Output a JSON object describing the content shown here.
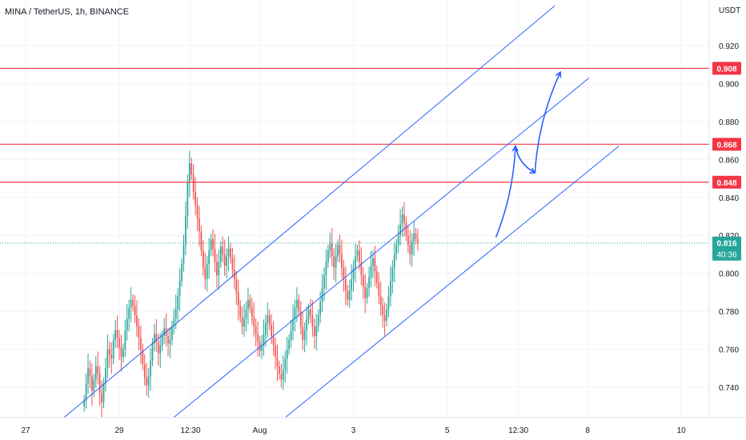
{
  "header": {
    "title": "MINA / TetherUS, 1h, BINANCE",
    "unit": "USDT"
  },
  "colors": {
    "up": "#26a69a",
    "down": "#ef5350",
    "hline": "#f23645",
    "channel": "#2962ff",
    "arrow": "#2962ff",
    "grid": "#f0f3fa",
    "text": "#131722"
  },
  "chart_data": {
    "type": "candlestick",
    "title": "MINA / TetherUS, 1h, BINANCE",
    "y_unit": "USDT",
    "ylim": [
      0.724,
      0.944
    ],
    "y_ticks": [
      0.74,
      0.76,
      0.78,
      0.8,
      0.82,
      0.84,
      0.86,
      0.88,
      0.9,
      0.92
    ],
    "x_ticks": [
      {
        "label": "27",
        "t": 0.0
      },
      {
        "label": "29",
        "t": 48.0
      },
      {
        "label": "12:30",
        "t": 84.5
      },
      {
        "label": "Aug",
        "t": 120.0
      },
      {
        "label": "3",
        "t": 168.0
      },
      {
        "label": "5",
        "t": 216.0
      },
      {
        "label": "12:30",
        "t": 252.5
      },
      {
        "label": "8",
        "t": 288.0
      },
      {
        "label": "10",
        "t": 336.0
      }
    ],
    "price_levels": [
      {
        "label": "0.908",
        "value": 0.908
      },
      {
        "label": "0.868",
        "value": 0.868
      },
      {
        "label": "0.848",
        "value": 0.848
      }
    ],
    "current_price": {
      "label": "0.816",
      "value": 0.816,
      "countdown": "40:36"
    },
    "channel_lines": [
      {
        "name": "upper-channel-line",
        "from": {
          "t": 19.7,
          "p": 0.724
        },
        "to": {
          "t": 271.2,
          "p": 0.941
        }
      },
      {
        "name": "middle-channel-line",
        "from": {
          "t": 75.8,
          "p": 0.724
        },
        "to": {
          "t": 288.8,
          "p": 0.903
        }
      },
      {
        "name": "lower-channel-line",
        "from": {
          "t": 133.0,
          "p": 0.724
        },
        "to": {
          "t": 304.0,
          "p": 0.867
        }
      }
    ],
    "projection_path": [
      {
        "t": 241.0,
        "p": 0.819
      },
      {
        "t": 251.0,
        "p": 0.867
      },
      {
        "t": 261.0,
        "p": 0.853
      },
      {
        "t": 274.0,
        "p": 0.906
      }
    ],
    "candles_hourly": {
      "start_t": 30.0,
      "interval_h": 1,
      "open": 0.73,
      "closes": [
        0.733,
        0.742,
        0.75,
        0.746,
        0.738,
        0.744,
        0.751,
        0.747,
        0.737,
        0.732,
        0.742,
        0.75,
        0.76,
        0.757,
        0.755,
        0.765,
        0.77,
        0.766,
        0.761,
        0.756,
        0.76,
        0.77,
        0.776,
        0.782,
        0.786,
        0.783,
        0.778,
        0.772,
        0.766,
        0.76,
        0.752,
        0.745,
        0.741,
        0.746,
        0.754,
        0.763,
        0.768,
        0.764,
        0.758,
        0.762,
        0.767,
        0.771,
        0.767,
        0.763,
        0.765,
        0.772,
        0.776,
        0.781,
        0.788,
        0.796,
        0.805,
        0.815,
        0.83,
        0.848,
        0.858,
        0.852,
        0.843,
        0.836,
        0.829,
        0.822,
        0.812,
        0.803,
        0.797,
        0.805,
        0.812,
        0.818,
        0.813,
        0.806,
        0.799,
        0.806,
        0.814,
        0.81,
        0.804,
        0.809,
        0.813,
        0.808,
        0.802,
        0.797,
        0.79,
        0.783,
        0.777,
        0.772,
        0.776,
        0.781,
        0.786,
        0.782,
        0.777,
        0.772,
        0.768,
        0.764,
        0.759,
        0.762,
        0.768,
        0.774,
        0.778,
        0.773,
        0.767,
        0.762,
        0.756,
        0.751,
        0.747,
        0.744,
        0.749,
        0.755,
        0.76,
        0.765,
        0.77,
        0.776,
        0.782,
        0.786,
        0.78,
        0.772,
        0.765,
        0.77,
        0.776,
        0.781,
        0.778,
        0.772,
        0.767,
        0.772,
        0.778,
        0.785,
        0.792,
        0.799,
        0.806,
        0.812,
        0.816,
        0.809,
        0.803,
        0.809,
        0.815,
        0.81,
        0.803,
        0.797,
        0.791,
        0.786,
        0.791,
        0.797,
        0.803,
        0.809,
        0.812,
        0.806,
        0.799,
        0.793,
        0.787,
        0.792,
        0.798,
        0.804,
        0.808,
        0.801,
        0.795,
        0.788,
        0.783,
        0.778,
        0.775,
        0.781,
        0.788,
        0.796,
        0.803,
        0.81,
        0.815,
        0.82,
        0.826,
        0.831,
        0.827,
        0.82,
        0.815,
        0.81,
        0.817,
        0.821,
        0.818,
        0.816
      ]
    }
  }
}
